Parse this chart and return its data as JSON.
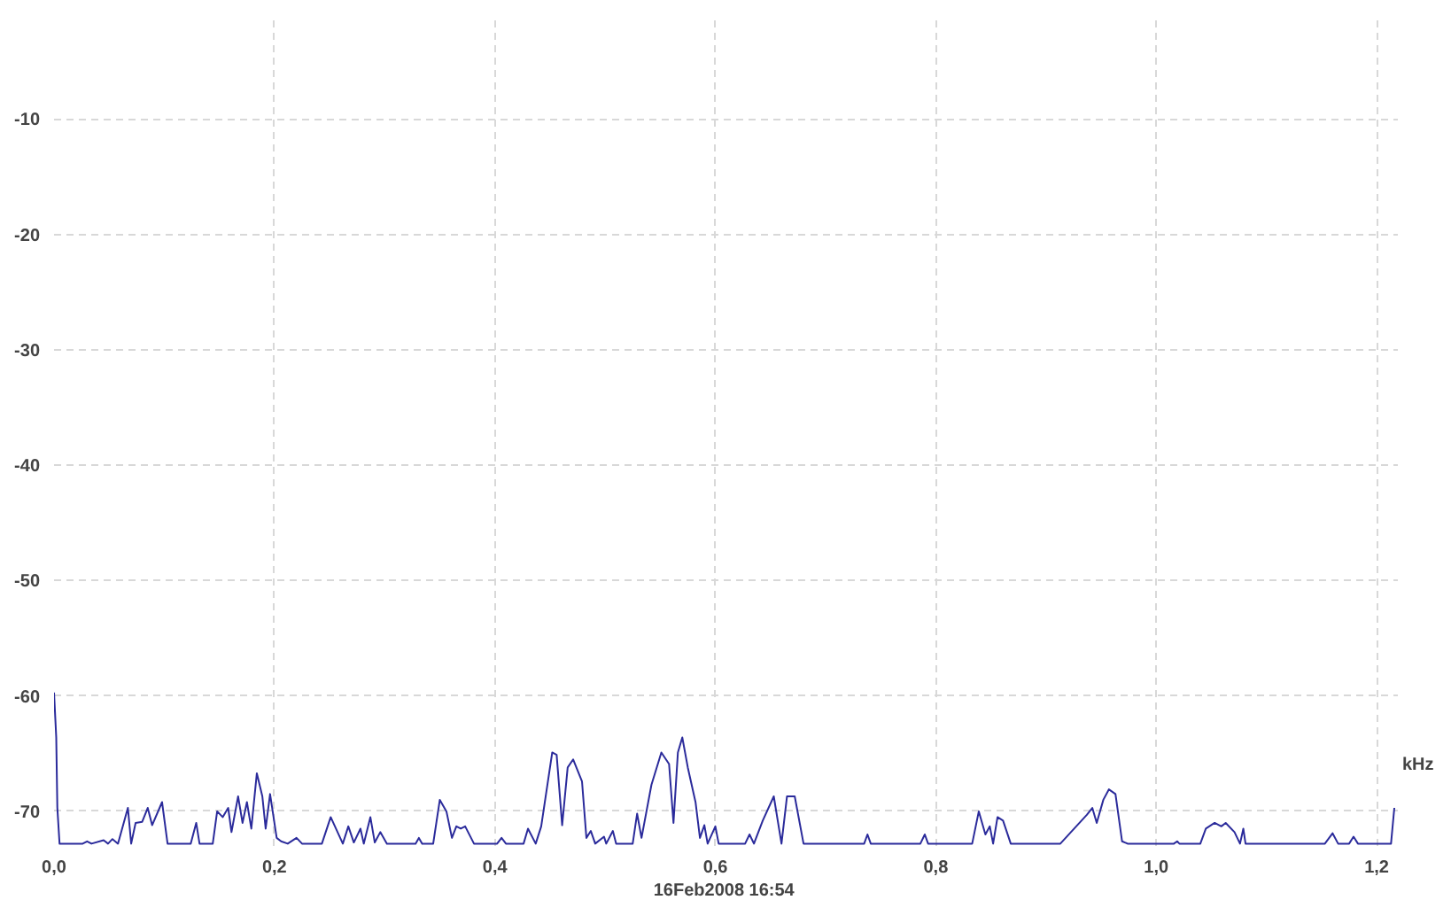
{
  "chart_data": {
    "type": "line",
    "xlabel": "kHz",
    "annotations": [
      "16Feb2008  16:54"
    ],
    "xlim": [
      0,
      1.22
    ],
    "ylim": [
      -73,
      -1
    ],
    "xticks": [
      {
        "value": 0,
        "label": "0,0"
      },
      {
        "value": 0.2,
        "label": "0,2"
      },
      {
        "value": 0.4,
        "label": "0,4"
      },
      {
        "value": 0.6,
        "label": "0,6"
      },
      {
        "value": 0.8,
        "label": "0,8"
      },
      {
        "value": 1.0,
        "label": "1,0"
      },
      {
        "value": 1.2,
        "label": "1,2"
      }
    ],
    "yticks": [
      -10,
      -20,
      -30,
      -40,
      -50,
      -60,
      -70
    ],
    "grid": true,
    "marker": "none",
    "line_style": "solid",
    "series": [
      {
        "color": "#2b2b9b",
        "x": [
          0,
          0.002,
          0.003,
          0.005,
          0.026,
          0.03,
          0.034,
          0.045,
          0.049,
          0.053,
          0.058,
          0.067,
          0.07,
          0.074,
          0.08,
          0.085,
          0.089,
          0.098,
          0.103,
          0.124,
          0.129,
          0.132,
          0.144,
          0.148,
          0.153,
          0.158,
          0.161,
          0.167,
          0.171,
          0.175,
          0.179,
          0.184,
          0.189,
          0.192,
          0.196,
          0.202,
          0.206,
          0.212,
          0.22,
          0.225,
          0.243,
          0.251,
          0.262,
          0.267,
          0.272,
          0.278,
          0.281,
          0.287,
          0.291,
          0.296,
          0.302,
          0.328,
          0.331,
          0.334,
          0.344,
          0.35,
          0.356,
          0.361,
          0.365,
          0.369,
          0.373,
          0.381,
          0.402,
          0.406,
          0.41,
          0.426,
          0.43,
          0.437,
          0.442,
          0.452,
          0.456,
          0.461,
          0.466,
          0.471,
          0.479,
          0.483,
          0.487,
          0.491,
          0.499,
          0.501,
          0.507,
          0.51,
          0.525,
          0.529,
          0.533,
          0.542,
          0.551,
          0.558,
          0.562,
          0.566,
          0.57,
          0.575,
          0.582,
          0.586,
          0.59,
          0.593,
          0.6,
          0.603,
          0.627,
          0.631,
          0.635,
          0.643,
          0.653,
          0.66,
          0.665,
          0.672,
          0.68,
          0.735,
          0.738,
          0.741,
          0.786,
          0.79,
          0.793,
          0.833,
          0.839,
          0.845,
          0.849,
          0.852,
          0.856,
          0.861,
          0.868,
          0.913,
          0.937,
          0.942,
          0.946,
          0.952,
          0.957,
          0.963,
          0.969,
          0.974,
          1.016,
          1.019,
          1.021,
          1.04,
          1.045,
          1.053,
          1.059,
          1.063,
          1.071,
          1.076,
          1.079,
          1.081,
          1.153,
          1.16,
          1.165,
          1.175,
          1.179,
          1.183,
          1.213,
          1.216
        ],
        "values": [
          -59.7,
          -63.6,
          -69.7,
          -72.8,
          -72.8,
          -72.6,
          -72.8,
          -72.5,
          -72.8,
          -72.4,
          -72.8,
          -69.7,
          -72.8,
          -71.0,
          -70.9,
          -69.7,
          -71.2,
          -69.2,
          -72.8,
          -72.8,
          -71.0,
          -72.8,
          -72.8,
          -70.0,
          -70.5,
          -69.7,
          -71.8,
          -68.7,
          -71.0,
          -69.2,
          -71.5,
          -66.7,
          -68.7,
          -71.5,
          -68.5,
          -72.3,
          -72.6,
          -72.8,
          -72.3,
          -72.8,
          -72.8,
          -70.5,
          -72.8,
          -71.3,
          -72.7,
          -71.5,
          -72.8,
          -70.5,
          -72.7,
          -71.8,
          -72.8,
          -72.8,
          -72.3,
          -72.8,
          -72.8,
          -69.0,
          -70.0,
          -72.3,
          -71.3,
          -71.5,
          -71.3,
          -72.8,
          -72.8,
          -72.3,
          -72.8,
          -72.8,
          -71.5,
          -72.8,
          -71.3,
          -64.9,
          -65.1,
          -71.2,
          -66.2,
          -65.5,
          -67.4,
          -72.3,
          -71.7,
          -72.8,
          -72.2,
          -72.8,
          -71.7,
          -72.8,
          -72.8,
          -70.2,
          -72.3,
          -67.7,
          -64.9,
          -65.9,
          -71.0,
          -64.9,
          -63.6,
          -66.2,
          -69.2,
          -72.3,
          -71.2,
          -72.8,
          -71.3,
          -72.8,
          -72.8,
          -72.0,
          -72.8,
          -70.8,
          -68.7,
          -72.8,
          -68.7,
          -68.7,
          -72.8,
          -72.8,
          -72.0,
          -72.8,
          -72.8,
          -72.0,
          -72.8,
          -72.8,
          -70.0,
          -72.0,
          -71.3,
          -72.8,
          -70.5,
          -70.8,
          -72.8,
          -72.8,
          -70.3,
          -69.7,
          -71.0,
          -69.0,
          -68.1,
          -68.5,
          -72.6,
          -72.8,
          -72.8,
          -72.6,
          -72.8,
          -72.8,
          -71.5,
          -71.0,
          -71.3,
          -71.0,
          -71.8,
          -72.8,
          -71.5,
          -72.8,
          -72.8,
          -71.9,
          -72.8,
          -72.8,
          -72.2,
          -72.8,
          -72.8,
          -69.7
        ]
      }
    ]
  }
}
